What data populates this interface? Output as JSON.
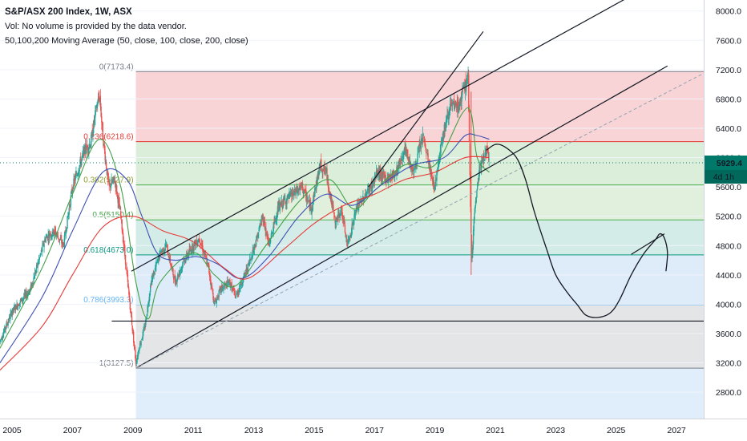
{
  "legend": {
    "title": "S&P/ASX 200 Index, 1W, ASX",
    "volume": "Vol: No volume is provided by the data vendor.",
    "ma": "50,100,200 Moving Average (50, close, 100, close, 200, close)"
  },
  "colors": {
    "candle_up": "#26a69a",
    "candle_down": "#ef5350",
    "ma50": "#43a047",
    "ma100": "#3f51b5",
    "ma200": "#e53935",
    "price_tag": "#00796b"
  },
  "chart_data": {
    "type": "candlestick",
    "x_axis": {
      "ticks": [
        "2005",
        "2007",
        "2009",
        "2011",
        "2013",
        "2015",
        "2017",
        "2019",
        "2021",
        "2023",
        "2025",
        "2027"
      ],
      "range": [
        2004.6,
        2027.9
      ]
    },
    "y_axis": {
      "ticks": [
        2800,
        3200,
        3600,
        4000,
        4400,
        4800,
        5200,
        5600,
        6000,
        6400,
        6800,
        7200,
        7600,
        8000
      ],
      "tick_labels": [
        "2800.0",
        "3200.0",
        "3600.0",
        "4000.0",
        "4400.0",
        "4800.0",
        "5200.0",
        "5600.0",
        "6000.0",
        "6400.0",
        "6800.0",
        "7200.0",
        "7600.0",
        "8000.0"
      ],
      "range": [
        2440,
        8150
      ]
    },
    "last_price": {
      "value": 5929.4,
      "label": "5929.4",
      "countdown": "4d 1h"
    },
    "price_keypoints": [
      [
        2004.6,
        3500
      ],
      [
        2005.0,
        3900
      ],
      [
        2005.6,
        4200
      ],
      [
        2006.1,
        4900
      ],
      [
        2006.4,
        5000
      ],
      [
        2006.7,
        4800
      ],
      [
        2007.0,
        5600
      ],
      [
        2007.4,
        6100
      ],
      [
        2007.6,
        6200
      ],
      [
        2007.8,
        6700
      ],
      [
        2007.9,
        6850
      ],
      [
        2008.0,
        6300
      ],
      [
        2008.2,
        5600
      ],
      [
        2008.4,
        5700
      ],
      [
        2008.6,
        5200
      ],
      [
        2008.8,
        4400
      ],
      [
        2009.0,
        3600
      ],
      [
        2009.1,
        3200
      ],
      [
        2009.2,
        3400
      ],
      [
        2009.4,
        3700
      ],
      [
        2009.6,
        4300
      ],
      [
        2009.9,
        4700
      ],
      [
        2010.1,
        4800
      ],
      [
        2010.4,
        4300
      ],
      [
        2010.7,
        4600
      ],
      [
        2011.0,
        4800
      ],
      [
        2011.2,
        4900
      ],
      [
        2011.5,
        4500
      ],
      [
        2011.7,
        4000
      ],
      [
        2011.9,
        4200
      ],
      [
        2012.2,
        4300
      ],
      [
        2012.4,
        4100
      ],
      [
        2012.8,
        4500
      ],
      [
        2013.1,
        4900
      ],
      [
        2013.3,
        5200
      ],
      [
        2013.5,
        4800
      ],
      [
        2013.8,
        5300
      ],
      [
        2014.0,
        5400
      ],
      [
        2014.3,
        5500
      ],
      [
        2014.6,
        5600
      ],
      [
        2014.9,
        5300
      ],
      [
        2015.2,
        5900
      ],
      [
        2015.4,
        5800
      ],
      [
        2015.7,
        5100
      ],
      [
        2015.9,
        5300
      ],
      [
        2016.1,
        4800
      ],
      [
        2016.4,
        5300
      ],
      [
        2016.7,
        5500
      ],
      [
        2016.9,
        5600
      ],
      [
        2017.1,
        5800
      ],
      [
        2017.4,
        5700
      ],
      [
        2017.7,
        5800
      ],
      [
        2018.0,
        6100
      ],
      [
        2018.3,
        5800
      ],
      [
        2018.6,
        6300
      ],
      [
        2018.9,
        5700
      ],
      [
        2019.0,
        5600
      ],
      [
        2019.2,
        6200
      ],
      [
        2019.5,
        6700
      ],
      [
        2019.8,
        6700
      ],
      [
        2020.0,
        7000
      ],
      [
        2020.1,
        7100
      ],
      [
        2020.17,
        5400
      ],
      [
        2020.22,
        4600
      ],
      [
        2020.3,
        5200
      ],
      [
        2020.45,
        5800
      ],
      [
        2020.6,
        6000
      ],
      [
        2020.75,
        6100
      ],
      [
        2020.8,
        5929
      ]
    ],
    "moving_averages": [
      {
        "name": "50",
        "points": [
          [
            2004.6,
            3400
          ],
          [
            2006.0,
            4500
          ],
          [
            2007.0,
            5500
          ],
          [
            2007.9,
            6250
          ],
          [
            2008.6,
            5600
          ],
          [
            2009.1,
            4300
          ],
          [
            2009.5,
            3800
          ],
          [
            2009.9,
            4300
          ],
          [
            2011.0,
            4700
          ],
          [
            2011.7,
            4400
          ],
          [
            2012.4,
            4250
          ],
          [
            2013.4,
            4800
          ],
          [
            2014.5,
            5400
          ],
          [
            2015.5,
            5700
          ],
          [
            2016.3,
            5300
          ],
          [
            2017.0,
            5550
          ],
          [
            2018.0,
            5900
          ],
          [
            2019.0,
            5900
          ],
          [
            2019.9,
            6600
          ],
          [
            2020.2,
            6600
          ],
          [
            2020.4,
            6000
          ],
          [
            2020.8,
            5800
          ]
        ]
      },
      {
        "name": "100",
        "points": [
          [
            2004.6,
            3200
          ],
          [
            2006.0,
            4100
          ],
          [
            2007.0,
            5000
          ],
          [
            2008.0,
            5800
          ],
          [
            2008.8,
            5700
          ],
          [
            2009.3,
            5200
          ],
          [
            2009.8,
            4700
          ],
          [
            2010.4,
            4600
          ],
          [
            2011.1,
            4650
          ],
          [
            2011.8,
            4550
          ],
          [
            2012.6,
            4350
          ],
          [
            2013.5,
            4650
          ],
          [
            2014.5,
            5200
          ],
          [
            2015.4,
            5500
          ],
          [
            2016.3,
            5350
          ],
          [
            2017.3,
            5650
          ],
          [
            2018.3,
            5900
          ],
          [
            2019.3,
            6000
          ],
          [
            2020.0,
            6300
          ],
          [
            2020.4,
            6300
          ],
          [
            2020.8,
            6250
          ]
        ]
      },
      {
        "name": "200",
        "points": [
          [
            2004.6,
            3100
          ],
          [
            2006.0,
            3700
          ],
          [
            2007.0,
            4400
          ],
          [
            2008.0,
            5050
          ],
          [
            2009.0,
            5200
          ],
          [
            2010.0,
            5000
          ],
          [
            2011.0,
            4850
          ],
          [
            2012.0,
            4500
          ],
          [
            2012.8,
            4350
          ],
          [
            2014.0,
            4750
          ],
          [
            2015.0,
            5100
          ],
          [
            2016.0,
            5350
          ],
          [
            2017.0,
            5500
          ],
          [
            2018.0,
            5700
          ],
          [
            2019.0,
            5800
          ],
          [
            2020.0,
            6000
          ],
          [
            2020.8,
            6000
          ]
        ]
      }
    ],
    "fibonacci": {
      "start": {
        "x": 2009.1,
        "y": 3127.5
      },
      "end": {
        "x": 2020.1,
        "y": 7173.4
      },
      "right": 2027.9,
      "levels": [
        {
          "ratio": 0,
          "value": 7173.4,
          "label": "0(7173.4)"
        },
        {
          "ratio": 0.236,
          "value": 6218.6,
          "label": "0.236(6218.6)"
        },
        {
          "ratio": 0.382,
          "value": 5627.9,
          "label": "0.382(5627.9)"
        },
        {
          "ratio": 0.5,
          "value": 5150.4,
          "label": "0.5(5150.4)"
        },
        {
          "ratio": 0.618,
          "value": 4673.0,
          "label": "0.618(4673.0)"
        },
        {
          "ratio": 0.786,
          "value": 3993.3,
          "label": "0.786(3993.3)"
        },
        {
          "ratio": 1,
          "value": 3127.5,
          "label": "1(3127.5)"
        }
      ]
    },
    "trendlines": [
      {
        "from": [
          2008.95,
          4450
        ],
        "to": [
          2025.9,
          8300
        ]
      },
      {
        "from": [
          2009.1,
          3127.5
        ],
        "to": [
          2026.7,
          7250
        ]
      },
      {
        "from": [
          2016.8,
          5600
        ],
        "to": [
          2020.6,
          7720
        ]
      },
      {
        "from": [
          2008.3,
          3770
        ],
        "to": [
          2027.9,
          3770
        ]
      },
      {
        "from": [
          2009.1,
          3127.5
        ],
        "to": [
          2027.9,
          7150
        ],
        "dashed": true
      },
      {
        "from": [
          2025.5,
          4680
        ],
        "to": [
          2026.6,
          4960
        ]
      }
    ],
    "projection_path": [
      [
        2020.7,
        6100
      ],
      [
        2021.0,
        6180
      ],
      [
        2021.3,
        6150
      ],
      [
        2021.7,
        6000
      ],
      [
        2022.0,
        5700
      ],
      [
        2022.3,
        5250
      ],
      [
        2022.7,
        4750
      ],
      [
        2023.0,
        4400
      ],
      [
        2023.4,
        4150
      ],
      [
        2023.7,
        4000
      ],
      [
        2024.0,
        3850
      ],
      [
        2024.4,
        3820
      ],
      [
        2024.8,
        3880
      ],
      [
        2025.1,
        4050
      ],
      [
        2025.5,
        4400
      ],
      [
        2025.9,
        4680
      ],
      [
        2026.3,
        4880
      ],
      [
        2026.45,
        4960
      ],
      [
        2026.6,
        4900
      ],
      [
        2026.7,
        4700
      ],
      [
        2026.65,
        4450
      ]
    ]
  }
}
